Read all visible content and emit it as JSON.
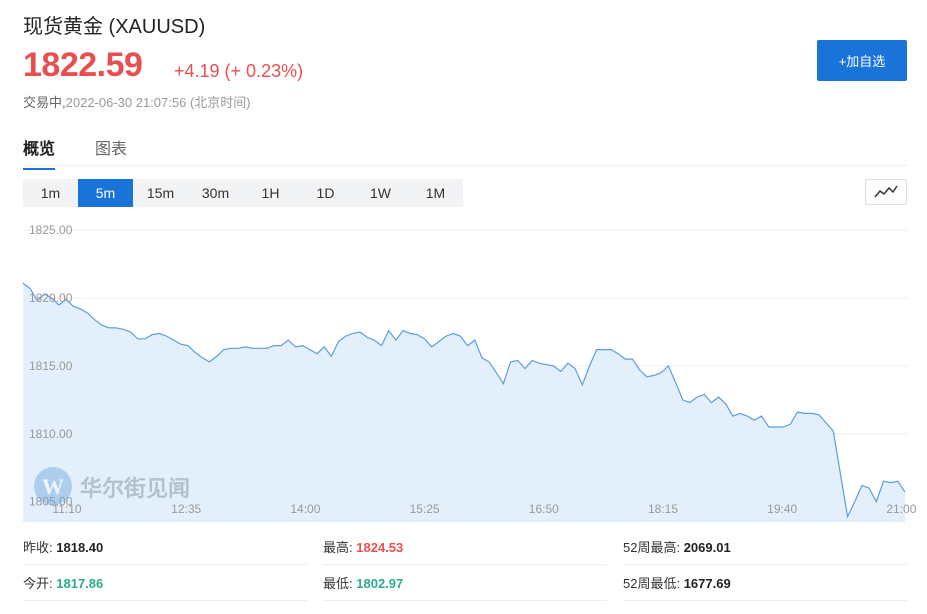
{
  "header": {
    "title": "现货黄金  (XAUUSD)",
    "price": "1822.59",
    "change": "+4.19 (+ 0.23%)",
    "status": "交易中,",
    "timestamp": "2022-06-30 21:07:56 (北京时间)",
    "add_button": "+加自选"
  },
  "tabs": [
    {
      "label": "概览",
      "active": true
    },
    {
      "label": "图表",
      "active": false
    }
  ],
  "periods": [
    {
      "label": "1m",
      "active": false
    },
    {
      "label": "5m",
      "active": true
    },
    {
      "label": "15m",
      "active": false
    },
    {
      "label": "30m",
      "active": false
    },
    {
      "label": "1H",
      "active": false
    },
    {
      "label": "1D",
      "active": false
    },
    {
      "label": "1W",
      "active": false
    },
    {
      "label": "1M",
      "active": false
    }
  ],
  "watermark": "华尔街见闻",
  "chart_data": {
    "type": "area",
    "ylim": [
      1803.5,
      1825.9
    ],
    "yticks": [
      "1825.00",
      "1820.00",
      "1815.00",
      "1810.00",
      "1805.00"
    ],
    "ytick_values": [
      1825,
      1820,
      1815,
      1810,
      1805
    ],
    "xtick_labels": [
      "11:10",
      "12:35",
      "14:00",
      "15:25",
      "16:50",
      "18:15",
      "19:40",
      "21:00"
    ],
    "x_count": 124,
    "values": [
      1821.1,
      1820.7,
      1819.8,
      1820.3,
      1820.0,
      1819.5,
      1819.9,
      1819.4,
      1819.2,
      1818.9,
      1818.4,
      1818.0,
      1817.8,
      1817.8,
      1817.7,
      1817.5,
      1817.0,
      1817.0,
      1817.3,
      1817.4,
      1817.2,
      1816.9,
      1816.6,
      1816.5,
      1816.0,
      1815.6,
      1815.3,
      1815.7,
      1816.2,
      1816.3,
      1816.3,
      1816.4,
      1816.3,
      1816.3,
      1816.3,
      1816.5,
      1816.5,
      1816.9,
      1816.4,
      1816.5,
      1816.2,
      1815.9,
      1816.4,
      1815.7,
      1816.8,
      1817.2,
      1817.4,
      1817.5,
      1817.1,
      1816.9,
      1816.5,
      1817.6,
      1816.9,
      1817.6,
      1817.4,
      1817.3,
      1817.0,
      1816.4,
      1816.8,
      1817.2,
      1817.4,
      1817.2,
      1816.5,
      1816.9,
      1815.6,
      1815.3,
      1814.5,
      1813.7,
      1815.3,
      1815.4,
      1814.8,
      1815.4,
      1815.2,
      1815.1,
      1815.0,
      1814.6,
      1815.2,
      1814.8,
      1813.6,
      1815.0,
      1816.2,
      1816.2,
      1816.2,
      1815.9,
      1815.5,
      1815.5,
      1814.7,
      1814.2,
      1814.3,
      1814.5,
      1815.0,
      1813.8,
      1812.5,
      1812.3,
      1812.7,
      1812.9,
      1812.3,
      1812.7,
      1812.2,
      1811.3,
      1811.5,
      1811.3,
      1811.0,
      1811.3,
      1810.5,
      1810.5,
      1810.5,
      1810.7,
      1811.6,
      1811.5,
      1811.5,
      1811.4,
      1810.8,
      1810.2,
      1807.0,
      1803.9,
      1805.0,
      1806.2,
      1806.0,
      1805.0,
      1806.5,
      1806.4,
      1806.5,
      1805.7
    ]
  },
  "stats": [
    {
      "label": "昨收:",
      "value": "1818.40",
      "tone": "neutral"
    },
    {
      "label": "最高:",
      "value": "1824.53",
      "tone": "up"
    },
    {
      "label": "52周最高:",
      "value": "2069.01",
      "tone": "neutral"
    },
    {
      "label": "今开:",
      "value": "1817.86",
      "tone": "down"
    },
    {
      "label": "最低:",
      "value": "1802.97",
      "tone": "down"
    },
    {
      "label": "52周最低:",
      "value": "1677.69",
      "tone": "neutral"
    }
  ],
  "colors": {
    "accent": "#1a73d8",
    "up": "#e94f4f",
    "down": "#2cab8e",
    "line": "#5b9ee0",
    "area": "#e3f0fc"
  }
}
